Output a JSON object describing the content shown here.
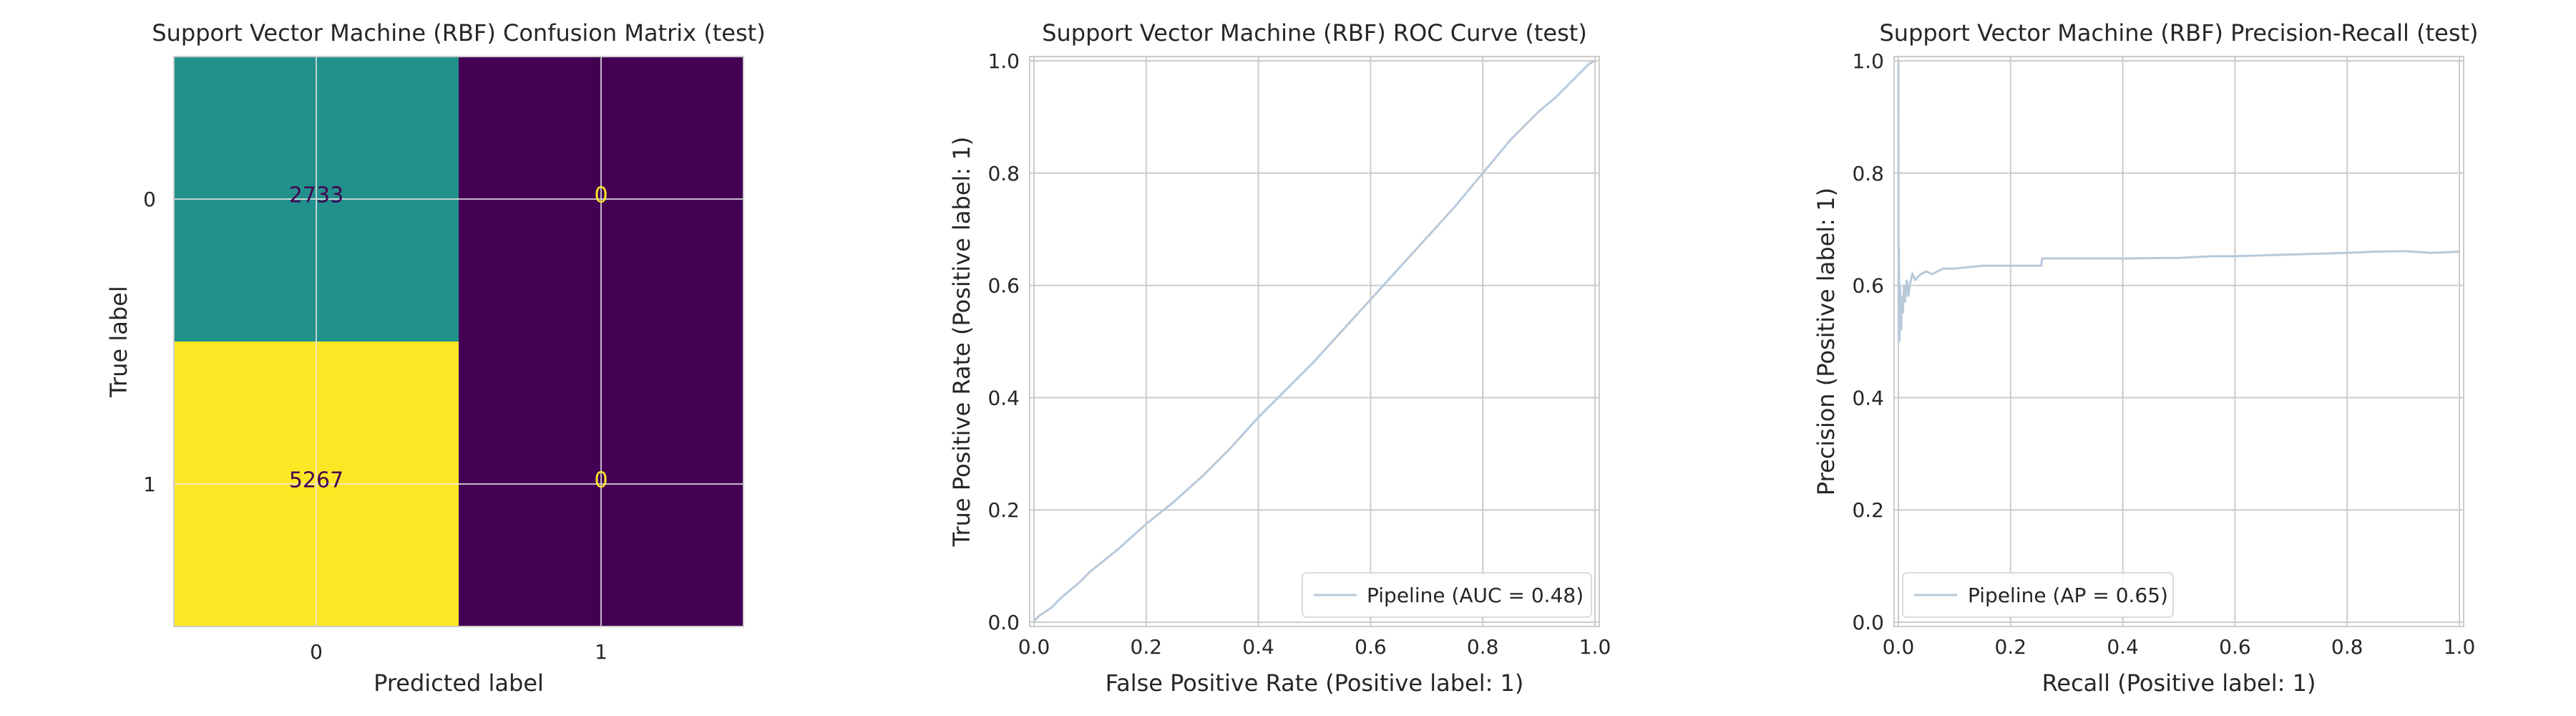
{
  "chart_data": [
    {
      "type": "heatmap",
      "title": "Support Vector Machine (RBF) Confusion Matrix (test)",
      "xlabel": "Predicted label",
      "ylabel": "True label",
      "x_ticks": [
        "0",
        "1"
      ],
      "y_ticks": [
        "0",
        "1"
      ],
      "matrix": [
        [
          2733,
          0
        ],
        [
          5267,
          0
        ]
      ],
      "colormap": "viridis",
      "cell_colors": [
        [
          "#21918c",
          "#440154"
        ],
        [
          "#fde725",
          "#440154"
        ]
      ],
      "grid": true
    },
    {
      "type": "line",
      "title": "Support Vector Machine (RBF) ROC Curve (test)",
      "xlabel": "False Positive Rate (Positive label: 1)",
      "ylabel": "True Positive Rate (Positive label: 1)",
      "xlim": [
        0.0,
        1.0
      ],
      "ylim": [
        0.0,
        1.0
      ],
      "x_ticks": [
        "0.0",
        "0.2",
        "0.4",
        "0.6",
        "0.8",
        "1.0"
      ],
      "y_ticks": [
        "0.0",
        "0.2",
        "0.4",
        "0.6",
        "0.8",
        "1.0"
      ],
      "grid": true,
      "legend_position": "lower-right",
      "series": [
        {
          "name": "Pipeline (AUC = 0.48)",
          "color": "#b8c9d9",
          "x": [
            0.0,
            0.002,
            0.01,
            0.03,
            0.05,
            0.08,
            0.1,
            0.15,
            0.2,
            0.25,
            0.3,
            0.35,
            0.4,
            0.45,
            0.5,
            0.55,
            0.6,
            0.65,
            0.7,
            0.75,
            0.8,
            0.85,
            0.9,
            0.93,
            0.95,
            0.97,
            0.99,
            1.0
          ],
          "y": [
            0.0,
            0.005,
            0.012,
            0.025,
            0.045,
            0.07,
            0.09,
            0.13,
            0.175,
            0.215,
            0.26,
            0.31,
            0.365,
            0.415,
            0.465,
            0.52,
            0.575,
            0.63,
            0.685,
            0.74,
            0.8,
            0.86,
            0.91,
            0.935,
            0.955,
            0.975,
            0.995,
            1.0
          ]
        }
      ]
    },
    {
      "type": "line",
      "title": "Support Vector Machine (RBF) Precision-Recall (test)",
      "xlabel": "Recall (Positive label: 1)",
      "ylabel": "Precision (Positive label: 1)",
      "xlim": [
        0.0,
        1.0
      ],
      "ylim": [
        0.0,
        1.0
      ],
      "x_ticks": [
        "0.0",
        "0.2",
        "0.4",
        "0.6",
        "0.8",
        "1.0"
      ],
      "y_ticks": [
        "0.0",
        "0.2",
        "0.4",
        "0.6",
        "0.8",
        "1.0"
      ],
      "grid": true,
      "legend_position": "lower-left",
      "series": [
        {
          "name": "Pipeline (AP = 0.65)",
          "color": "#b8c9d9",
          "x": [
            0.0,
            0.0005,
            0.001,
            0.002,
            0.003,
            0.004,
            0.005,
            0.006,
            0.008,
            0.01,
            0.012,
            0.015,
            0.018,
            0.02,
            0.025,
            0.03,
            0.04,
            0.05,
            0.06,
            0.08,
            0.1,
            0.15,
            0.2,
            0.255,
            0.256,
            0.3,
            0.4,
            0.5,
            0.56,
            0.6,
            0.7,
            0.8,
            0.85,
            0.9,
            0.95,
            1.0
          ],
          "y": [
            1.0,
            0.5,
            0.67,
            0.5,
            0.6,
            0.57,
            0.52,
            0.58,
            0.55,
            0.6,
            0.57,
            0.61,
            0.58,
            0.6,
            0.62,
            0.61,
            0.62,
            0.625,
            0.62,
            0.63,
            0.63,
            0.635,
            0.635,
            0.635,
            0.648,
            0.648,
            0.648,
            0.649,
            0.652,
            0.652,
            0.655,
            0.658,
            0.66,
            0.661,
            0.658,
            0.66
          ]
        }
      ]
    }
  ]
}
